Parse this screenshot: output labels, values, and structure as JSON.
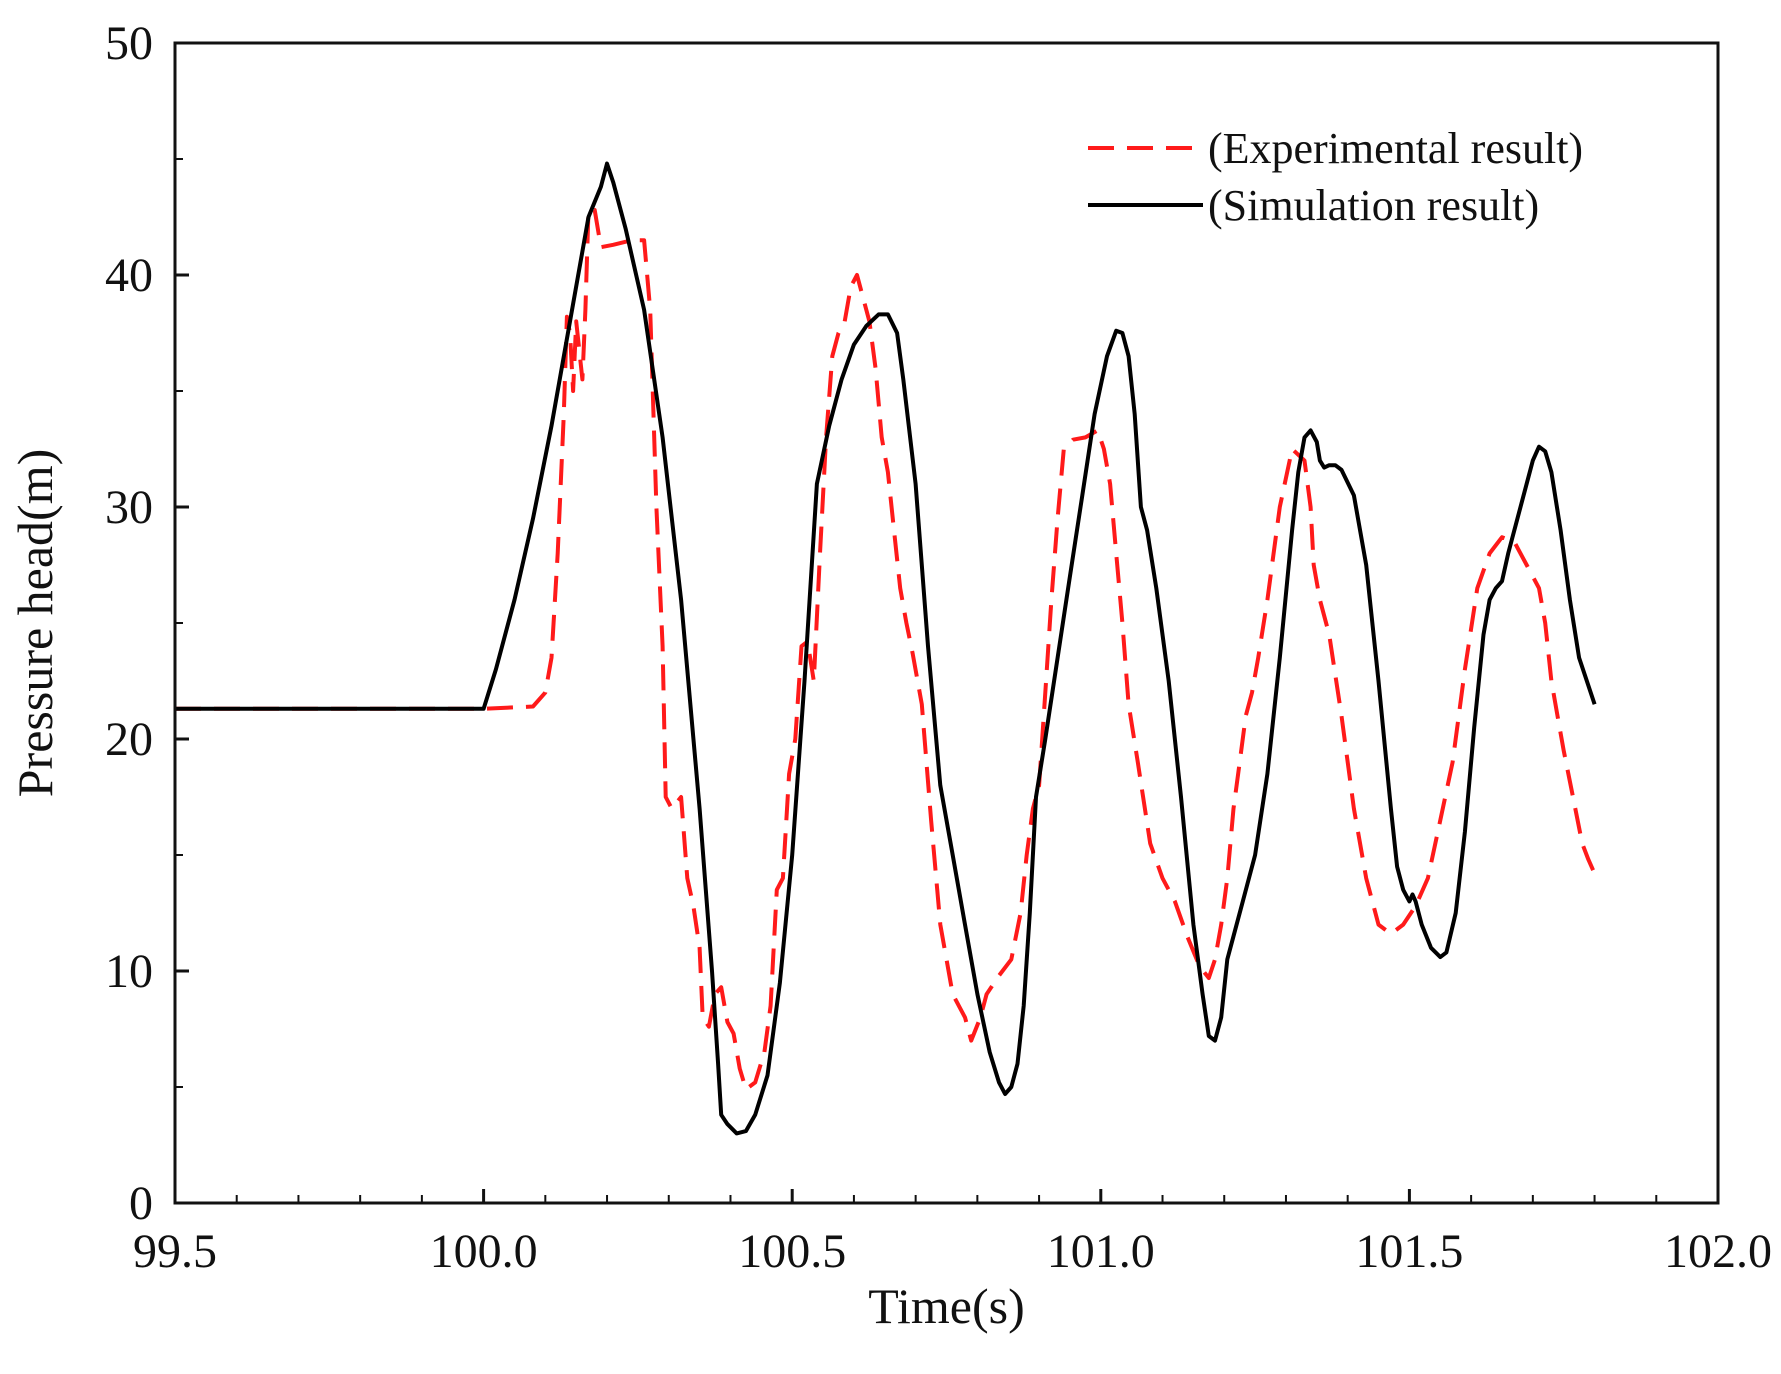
{
  "chart_data": {
    "type": "line",
    "title": "",
    "xlabel": "Time(s)",
    "ylabel": "Pressure head(m)",
    "xlim": [
      99.5,
      102.0
    ],
    "ylim": [
      0,
      50
    ],
    "x_ticks": [
      99.5,
      100.0,
      100.5,
      101.0,
      101.5,
      102.0
    ],
    "x_tick_labels": [
      "99.5",
      "100.0",
      "100.5",
      "101.0",
      "101.5",
      "102.0"
    ],
    "y_ticks": [
      0,
      10,
      20,
      30,
      40,
      50
    ],
    "y_tick_labels": [
      "0",
      "10",
      "20",
      "30",
      "40",
      "50"
    ],
    "grid": false,
    "legend_position": "top-right",
    "series": [
      {
        "name": "(Experimental result)",
        "style": "dashed",
        "color": "#ff1a1a",
        "points": [
          [
            99.5,
            21.3
          ],
          [
            100.0,
            21.3
          ],
          [
            100.08,
            21.4
          ],
          [
            100.1,
            22.0
          ],
          [
            100.11,
            23.5
          ],
          [
            100.12,
            28.0
          ],
          [
            100.13,
            34.0
          ],
          [
            100.135,
            38.2
          ],
          [
            100.14,
            37.5
          ],
          [
            100.145,
            35.0
          ],
          [
            100.15,
            38.0
          ],
          [
            100.16,
            35.5
          ],
          [
            100.165,
            38.5
          ],
          [
            100.17,
            42.8
          ],
          [
            100.18,
            42.8
          ],
          [
            100.19,
            41.2
          ],
          [
            100.21,
            41.3
          ],
          [
            100.24,
            41.5
          ],
          [
            100.26,
            41.5
          ],
          [
            100.27,
            38.5
          ],
          [
            100.28,
            30.0
          ],
          [
            100.29,
            24.0
          ],
          [
            100.295,
            17.5
          ],
          [
            100.305,
            17.0
          ],
          [
            100.32,
            17.5
          ],
          [
            100.33,
            14.0
          ],
          [
            100.34,
            12.8
          ],
          [
            100.35,
            11.0
          ],
          [
            100.355,
            8.0
          ],
          [
            100.365,
            7.6
          ],
          [
            100.375,
            9.0
          ],
          [
            100.385,
            9.3
          ],
          [
            100.395,
            7.8
          ],
          [
            100.405,
            7.3
          ],
          [
            100.415,
            5.8
          ],
          [
            100.425,
            4.9
          ],
          [
            100.44,
            5.2
          ],
          [
            100.455,
            6.5
          ],
          [
            100.465,
            8.5
          ],
          [
            100.475,
            13.5
          ],
          [
            100.485,
            14.0
          ],
          [
            100.495,
            18.5
          ],
          [
            100.505,
            20.0
          ],
          [
            100.515,
            24.0
          ],
          [
            100.525,
            24.2
          ],
          [
            100.535,
            22.5
          ],
          [
            100.545,
            28.0
          ],
          [
            100.555,
            33.0
          ],
          [
            100.565,
            36.5
          ],
          [
            100.575,
            37.5
          ],
          [
            100.585,
            38.0
          ],
          [
            100.595,
            39.5
          ],
          [
            100.605,
            40.0
          ],
          [
            100.615,
            39.0
          ],
          [
            100.625,
            38.0
          ],
          [
            100.635,
            36.0
          ],
          [
            100.645,
            33.0
          ],
          [
            100.655,
            31.5
          ],
          [
            100.665,
            29.0
          ],
          [
            100.675,
            26.5
          ],
          [
            100.685,
            25.0
          ],
          [
            100.695,
            23.7
          ],
          [
            100.71,
            21.5
          ],
          [
            100.725,
            16.5
          ],
          [
            100.74,
            12.0
          ],
          [
            100.76,
            9.0
          ],
          [
            100.78,
            8.0
          ],
          [
            100.79,
            7.0
          ],
          [
            100.805,
            8.0
          ],
          [
            100.815,
            9.0
          ],
          [
            100.835,
            9.8
          ],
          [
            100.855,
            10.5
          ],
          [
            100.87,
            12.5
          ],
          [
            100.88,
            15.0
          ],
          [
            100.89,
            17.0
          ],
          [
            100.9,
            18.0
          ],
          [
            100.91,
            22.0
          ],
          [
            100.92,
            26.0
          ],
          [
            100.93,
            29.5
          ],
          [
            100.94,
            32.5
          ],
          [
            100.955,
            32.9
          ],
          [
            100.975,
            33.0
          ],
          [
            100.995,
            33.3
          ],
          [
            101.005,
            32.5
          ],
          [
            101.015,
            31.0
          ],
          [
            101.025,
            28.0
          ],
          [
            101.035,
            25.0
          ],
          [
            101.045,
            21.5
          ],
          [
            101.06,
            19.0
          ],
          [
            101.08,
            15.5
          ],
          [
            101.1,
            14.0
          ],
          [
            101.12,
            13.0
          ],
          [
            101.14,
            11.5
          ],
          [
            101.16,
            10.2
          ],
          [
            101.175,
            9.7
          ],
          [
            101.185,
            10.5
          ],
          [
            101.195,
            12.0
          ],
          [
            101.205,
            14.0
          ],
          [
            101.215,
            17.0
          ],
          [
            101.225,
            19.0
          ],
          [
            101.235,
            21.0
          ],
          [
            101.245,
            22.0
          ],
          [
            101.255,
            23.5
          ],
          [
            101.27,
            26.0
          ],
          [
            101.29,
            30.0
          ],
          [
            101.31,
            32.5
          ],
          [
            101.33,
            32.0
          ],
          [
            101.34,
            30.0
          ],
          [
            101.345,
            27.5
          ],
          [
            101.355,
            26.0
          ],
          [
            101.37,
            24.5
          ],
          [
            101.39,
            21.0
          ],
          [
            101.41,
            17.0
          ],
          [
            101.43,
            14.0
          ],
          [
            101.45,
            12.0
          ],
          [
            101.47,
            11.6
          ],
          [
            101.49,
            12.0
          ],
          [
            101.51,
            12.8
          ],
          [
            101.53,
            14.0
          ],
          [
            101.55,
            16.5
          ],
          [
            101.57,
            19.0
          ],
          [
            101.59,
            23.0
          ],
          [
            101.61,
            26.5
          ],
          [
            101.63,
            28.0
          ],
          [
            101.65,
            28.7
          ],
          [
            101.67,
            28.5
          ],
          [
            101.69,
            27.5
          ],
          [
            101.71,
            26.5
          ],
          [
            101.72,
            25.0
          ],
          [
            101.73,
            22.5
          ],
          [
            101.74,
            21.0
          ],
          [
            101.75,
            19.5
          ],
          [
            101.765,
            17.5
          ],
          [
            101.78,
            15.5
          ],
          [
            101.79,
            14.8
          ],
          [
            101.8,
            14.2
          ]
        ]
      },
      {
        "name": "(Simulation result)",
        "style": "solid",
        "color": "#000000",
        "points": [
          [
            99.5,
            21.3
          ],
          [
            100.0,
            21.3
          ],
          [
            100.02,
            23.0
          ],
          [
            100.05,
            26.0
          ],
          [
            100.08,
            29.5
          ],
          [
            100.11,
            33.5
          ],
          [
            100.14,
            38.0
          ],
          [
            100.17,
            42.5
          ],
          [
            100.19,
            43.8
          ],
          [
            100.2,
            44.8
          ],
          [
            100.21,
            44.0
          ],
          [
            100.23,
            42.0
          ],
          [
            100.26,
            38.5
          ],
          [
            100.29,
            33.0
          ],
          [
            100.32,
            26.0
          ],
          [
            100.35,
            17.0
          ],
          [
            100.37,
            10.0
          ],
          [
            100.38,
            6.0
          ],
          [
            100.385,
            3.8
          ],
          [
            100.395,
            3.4
          ],
          [
            100.41,
            3.0
          ],
          [
            100.425,
            3.1
          ],
          [
            100.44,
            3.8
          ],
          [
            100.46,
            5.5
          ],
          [
            100.48,
            9.5
          ],
          [
            100.5,
            15.0
          ],
          [
            100.52,
            22.5
          ],
          [
            100.54,
            31.0
          ],
          [
            100.56,
            33.5
          ],
          [
            100.58,
            35.5
          ],
          [
            100.6,
            37.0
          ],
          [
            100.62,
            37.8
          ],
          [
            100.64,
            38.3
          ],
          [
            100.655,
            38.3
          ],
          [
            100.67,
            37.5
          ],
          [
            100.68,
            35.5
          ],
          [
            100.7,
            31.0
          ],
          [
            100.72,
            24.0
          ],
          [
            100.74,
            18.0
          ],
          [
            100.76,
            15.0
          ],
          [
            100.78,
            12.0
          ],
          [
            100.8,
            9.0
          ],
          [
            100.82,
            6.5
          ],
          [
            100.835,
            5.2
          ],
          [
            100.845,
            4.7
          ],
          [
            100.855,
            5.0
          ],
          [
            100.865,
            6.0
          ],
          [
            100.875,
            8.5
          ],
          [
            100.885,
            12.5
          ],
          [
            100.895,
            17.5
          ],
          [
            100.91,
            20.0
          ],
          [
            100.93,
            23.5
          ],
          [
            100.95,
            27.0
          ],
          [
            100.97,
            30.5
          ],
          [
            100.99,
            34.0
          ],
          [
            101.01,
            36.5
          ],
          [
            101.025,
            37.6
          ],
          [
            101.035,
            37.5
          ],
          [
            101.045,
            36.5
          ],
          [
            101.055,
            34.0
          ],
          [
            101.065,
            30.0
          ],
          [
            101.075,
            29.0
          ],
          [
            101.09,
            26.5
          ],
          [
            101.11,
            22.5
          ],
          [
            101.13,
            17.5
          ],
          [
            101.15,
            12.0
          ],
          [
            101.165,
            9.0
          ],
          [
            101.175,
            7.2
          ],
          [
            101.185,
            7.0
          ],
          [
            101.195,
            8.0
          ],
          [
            101.205,
            10.5
          ],
          [
            101.215,
            11.5
          ],
          [
            101.23,
            13.0
          ],
          [
            101.25,
            15.0
          ],
          [
            101.27,
            18.5
          ],
          [
            101.29,
            23.5
          ],
          [
            101.31,
            29.0
          ],
          [
            101.32,
            31.5
          ],
          [
            101.33,
            33.0
          ],
          [
            101.34,
            33.3
          ],
          [
            101.35,
            32.8
          ],
          [
            101.355,
            32.0
          ],
          [
            101.362,
            31.7
          ],
          [
            101.37,
            31.8
          ],
          [
            101.38,
            31.8
          ],
          [
            101.39,
            31.6
          ],
          [
            101.41,
            30.5
          ],
          [
            101.43,
            27.5
          ],
          [
            101.45,
            22.5
          ],
          [
            101.47,
            17.0
          ],
          [
            101.48,
            14.5
          ],
          [
            101.49,
            13.5
          ],
          [
            101.5,
            13.0
          ],
          [
            101.505,
            13.3
          ],
          [
            101.51,
            13.0
          ],
          [
            101.52,
            12.0
          ],
          [
            101.535,
            11.0
          ],
          [
            101.55,
            10.6
          ],
          [
            101.56,
            10.8
          ],
          [
            101.575,
            12.5
          ],
          [
            101.59,
            16.0
          ],
          [
            101.605,
            20.5
          ],
          [
            101.62,
            24.5
          ],
          [
            101.63,
            26.0
          ],
          [
            101.64,
            26.5
          ],
          [
            101.65,
            26.8
          ],
          [
            101.66,
            28.0
          ],
          [
            101.68,
            30.0
          ],
          [
            101.7,
            32.0
          ],
          [
            101.71,
            32.6
          ],
          [
            101.72,
            32.4
          ],
          [
            101.73,
            31.5
          ],
          [
            101.745,
            29.0
          ],
          [
            101.76,
            26.0
          ],
          [
            101.775,
            23.5
          ],
          [
            101.8,
            21.5
          ]
        ]
      }
    ]
  }
}
